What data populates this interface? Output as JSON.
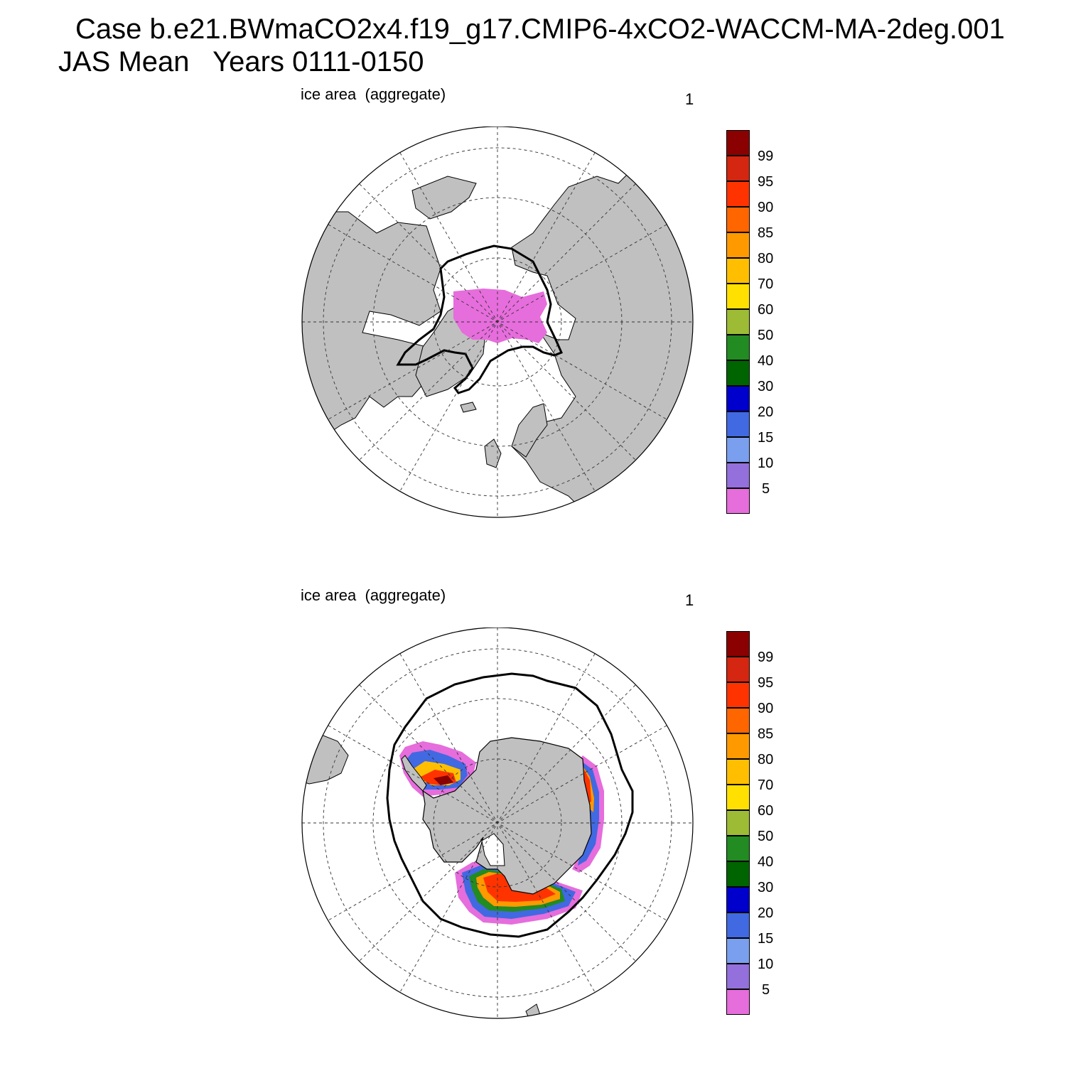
{
  "title": {
    "line1": "Case b.e21.BWmaCO2x4.f19_g17.CMIP6-4xCO2-WACCM-MA-2deg.001",
    "line2": "JAS Mean   Years 0111-0150"
  },
  "panels": [
    {
      "id": "north",
      "label": "ice area  (aggregate)",
      "number": "1"
    },
    {
      "id": "south",
      "label": "ice area  (aggregate)",
      "number": "1"
    }
  ],
  "colorbar": {
    "labels": [
      "99",
      "95",
      "90",
      "85",
      "80",
      "70",
      "60",
      "50",
      "40",
      "30",
      "20",
      "15",
      "10",
      "5"
    ],
    "colors": [
      "#8b0000",
      "#d42610",
      "#ff3300",
      "#ff6600",
      "#ff9900",
      "#ffbf00",
      "#ffe000",
      "#9dbb34",
      "#228b22",
      "#006400",
      "#0000cd",
      "#4169e1",
      "#7b9fef",
      "#9370db",
      "#e66ddc"
    ]
  },
  "colors": {
    "land": "#c0c0c0",
    "ocean": "#ffffff",
    "contour": "#000000"
  }
}
